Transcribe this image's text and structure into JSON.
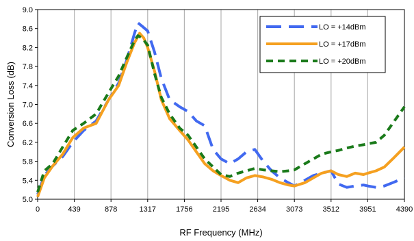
{
  "chart_data": {
    "type": "line",
    "title": "",
    "xlabel": "RF Frequency (MHz)",
    "ylabel": "Conversion Loss (dB)",
    "xlim": [
      0,
      4390
    ],
    "ylim": [
      5.0,
      9.0
    ],
    "x_ticks": [
      0,
      439,
      878,
      1317,
      1756,
      2195,
      2634,
      3073,
      3512,
      3951,
      4390
    ],
    "y_ticks": [
      "5.0",
      "5.4",
      "5.8",
      "6.2",
      "6.6",
      "7.0",
      "7.4",
      "7.8",
      "8.2",
      "8.6",
      "9.0"
    ],
    "grid": "vertical",
    "legend_position": "top-right",
    "series": [
      {
        "name": "LO = +14dBm",
        "color": "#4169f0",
        "dash": "long-dash",
        "x": [
          0,
          80,
          180,
          300,
          420,
          550,
          700,
          850,
          970,
          1070,
          1160,
          1200,
          1250,
          1317,
          1400,
          1480,
          1580,
          1700,
          1800,
          1900,
          2000,
          2100,
          2195,
          2300,
          2400,
          2500,
          2600,
          2700,
          2800,
          2900,
          3000,
          3073,
          3200,
          3300,
          3400,
          3512,
          3600,
          3700,
          3800,
          3900,
          3951,
          4050,
          4150,
          4250,
          4390
        ],
        "y": [
          5.1,
          5.5,
          5.7,
          5.9,
          6.2,
          6.45,
          6.65,
          7.1,
          7.45,
          7.95,
          8.5,
          8.72,
          8.65,
          8.55,
          8.1,
          7.55,
          7.1,
          6.95,
          6.85,
          6.65,
          6.55,
          6.05,
          5.85,
          5.75,
          5.85,
          6.0,
          6.05,
          5.8,
          5.6,
          5.45,
          5.35,
          5.28,
          5.4,
          5.5,
          5.55,
          5.6,
          5.32,
          5.25,
          5.28,
          5.3,
          5.28,
          5.25,
          5.28,
          5.35,
          5.45
        ]
      },
      {
        "name": "LO = +17dBm",
        "color": "#f5a020",
        "dash": "solid",
        "x": [
          0,
          80,
          180,
          300,
          420,
          550,
          700,
          850,
          970,
          1070,
          1160,
          1220,
          1270,
          1317,
          1400,
          1480,
          1580,
          1700,
          1800,
          1900,
          2000,
          2100,
          2195,
          2300,
          2400,
          2500,
          2600,
          2700,
          2800,
          2900,
          3000,
          3073,
          3200,
          3300,
          3400,
          3512,
          3600,
          3700,
          3800,
          3900,
          3951,
          4050,
          4150,
          4250,
          4390
        ],
        "y": [
          5.05,
          5.45,
          5.7,
          5.95,
          6.3,
          6.5,
          6.6,
          7.1,
          7.4,
          7.9,
          8.3,
          8.5,
          8.4,
          8.2,
          7.7,
          7.1,
          6.7,
          6.45,
          6.25,
          6.0,
          5.75,
          5.6,
          5.5,
          5.4,
          5.35,
          5.45,
          5.5,
          5.47,
          5.42,
          5.35,
          5.3,
          5.28,
          5.35,
          5.45,
          5.55,
          5.6,
          5.52,
          5.48,
          5.55,
          5.52,
          5.55,
          5.6,
          5.68,
          5.85,
          6.1
        ]
      },
      {
        "name": "LO = +20dBm",
        "color": "#1a7a1a",
        "dash": "short-dash",
        "x": [
          0,
          80,
          180,
          300,
          420,
          550,
          700,
          850,
          970,
          1070,
          1160,
          1200,
          1250,
          1317,
          1400,
          1480,
          1580,
          1700,
          1800,
          1900,
          2000,
          2100,
          2195,
          2300,
          2400,
          2500,
          2600,
          2700,
          2800,
          2900,
          3000,
          3073,
          3200,
          3300,
          3400,
          3512,
          3600,
          3700,
          3800,
          3900,
          3951,
          4050,
          4150,
          4250,
          4390
        ],
        "y": [
          5.15,
          5.6,
          5.75,
          6.1,
          6.45,
          6.6,
          6.8,
          7.25,
          7.6,
          8.0,
          8.35,
          8.45,
          8.4,
          8.25,
          7.65,
          7.15,
          6.8,
          6.5,
          6.35,
          6.1,
          5.85,
          5.68,
          5.52,
          5.48,
          5.55,
          5.6,
          5.65,
          5.62,
          5.6,
          5.58,
          5.6,
          5.62,
          5.75,
          5.85,
          5.95,
          6.0,
          6.03,
          6.08,
          6.12,
          6.15,
          6.17,
          6.2,
          6.35,
          6.6,
          6.95
        ]
      }
    ]
  }
}
